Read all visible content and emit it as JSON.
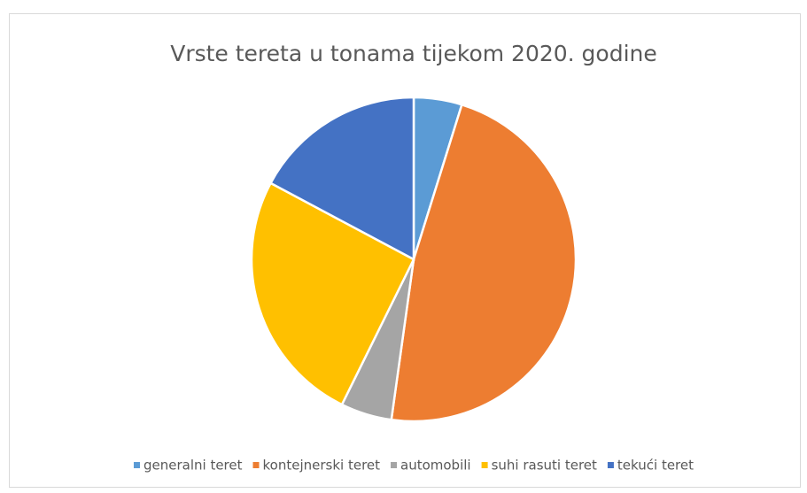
{
  "chart_data": {
    "type": "pie",
    "title": "Vrste tereta u tonama tijekom 2020. godine",
    "categories": [
      "generalni teret",
      "kontejnerski teret",
      "automobili",
      "suhi rasuti teret",
      "tekući teret"
    ],
    "values": [
      4.8,
      47.4,
      5.1,
      25.5,
      17.2
    ],
    "colors": [
      "#5b9bd5",
      "#ed7d31",
      "#a5a5a5",
      "#ffc000",
      "#4472c4"
    ],
    "legend": "bottom"
  }
}
